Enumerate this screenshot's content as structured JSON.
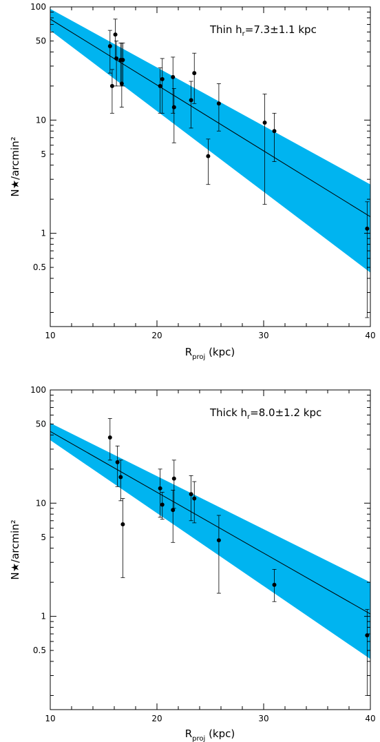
{
  "chart_data": [
    {
      "type": "scatter",
      "annotation": {
        "prefix": "Thin h",
        "sub": "r",
        "suffix": "=7.3±1.1 kpc"
      },
      "xlabel": {
        "main": "R",
        "sub": "proj",
        "suffix": " (kpc)"
      },
      "ylabel": "N★/arcmin²",
      "xlim": [
        10,
        40
      ],
      "ylim": [
        0.15,
        100
      ],
      "yscale": "log",
      "xticks": [
        10,
        20,
        30,
        40
      ],
      "yticks": [
        0.5,
        1,
        5,
        10,
        50,
        100
      ],
      "ytick_labels": [
        "0.5",
        "1",
        "5",
        "10",
        "50",
        "100"
      ],
      "band_color": "#00b4f0",
      "fit_line": {
        "x": [
          10,
          40
        ],
        "y": [
          78,
          1.4
        ]
      },
      "band": {
        "x": [
          10,
          40
        ],
        "upper": [
          96,
          2.7
        ],
        "lower": [
          62,
          0.45
        ]
      },
      "points": [
        {
          "x": 15.6,
          "y": 45,
          "ylo": 26,
          "yhi": 62
        },
        {
          "x": 15.8,
          "y": 20,
          "ylo": 11.5,
          "yhi": 28
        },
        {
          "x": 16.1,
          "y": 57,
          "ylo": 35,
          "yhi": 78
        },
        {
          "x": 16.2,
          "y": 35,
          "ylo": 20,
          "yhi": 50
        },
        {
          "x": 16.6,
          "y": 34,
          "ylo": 20,
          "yhi": 48
        },
        {
          "x": 16.7,
          "y": 21,
          "ylo": 13,
          "yhi": 48
        },
        {
          "x": 16.8,
          "y": 34,
          "ylo": 20,
          "yhi": 48
        },
        {
          "x": 20.3,
          "y": 20,
          "ylo": 11.5,
          "yhi": 29
        },
        {
          "x": 20.5,
          "y": 23,
          "ylo": 11.5,
          "yhi": 35
        },
        {
          "x": 21.5,
          "y": 24,
          "ylo": 11.5,
          "yhi": 36
        },
        {
          "x": 21.6,
          "y": 13,
          "ylo": 6.3,
          "yhi": 19
        },
        {
          "x": 23.2,
          "y": 15,
          "ylo": 8.5,
          "yhi": 22
        },
        {
          "x": 23.5,
          "y": 26,
          "ylo": 14,
          "yhi": 39
        },
        {
          "x": 25.8,
          "y": 14,
          "ylo": 8,
          "yhi": 21
        },
        {
          "x": 24.8,
          "y": 4.8,
          "ylo": 2.7,
          "yhi": 6.8
        },
        {
          "x": 30.1,
          "y": 9.5,
          "ylo": 1.8,
          "yhi": 17
        },
        {
          "x": 31.0,
          "y": 8,
          "ylo": 4.3,
          "yhi": 11.5
        },
        {
          "x": 39.7,
          "y": 1.1,
          "ylo": 0.18,
          "yhi": 1.9
        }
      ]
    },
    {
      "type": "scatter",
      "annotation": {
        "prefix": "Thick h",
        "sub": "r",
        "suffix": "=8.0±1.2 kpc"
      },
      "xlabel": {
        "main": "R",
        "sub": "proj",
        "suffix": " (kpc)"
      },
      "ylabel": "N★/arcmin²",
      "xlim": [
        10,
        40
      ],
      "ylim": [
        0.15,
        100
      ],
      "yscale": "log",
      "xticks": [
        10,
        20,
        30,
        40
      ],
      "yticks": [
        0.5,
        1,
        5,
        10,
        50,
        100
      ],
      "ytick_labels": [
        "0.5",
        "1",
        "5",
        "10",
        "50",
        "100"
      ],
      "band_color": "#00b4f0",
      "fit_line": {
        "x": [
          10,
          40
        ],
        "y": [
          43,
          1.05
        ]
      },
      "band": {
        "x": [
          10,
          40
        ],
        "upper": [
          51,
          2.0
        ],
        "lower": [
          36,
          0.42
        ]
      },
      "points": [
        {
          "x": 15.6,
          "y": 38,
          "ylo": 24,
          "yhi": 56
        },
        {
          "x": 16.3,
          "y": 23,
          "ylo": 14,
          "yhi": 32
        },
        {
          "x": 16.6,
          "y": 17,
          "ylo": 10.5,
          "yhi": 24
        },
        {
          "x": 16.8,
          "y": 6.5,
          "ylo": 2.2,
          "yhi": 11
        },
        {
          "x": 20.3,
          "y": 13.5,
          "ylo": 7.5,
          "yhi": 20
        },
        {
          "x": 20.5,
          "y": 9.7,
          "ylo": 7.2,
          "yhi": 12.5
        },
        {
          "x": 21.5,
          "y": 8.7,
          "ylo": 4.5,
          "yhi": 13
        },
        {
          "x": 21.6,
          "y": 16.5,
          "ylo": 9,
          "yhi": 24
        },
        {
          "x": 23.2,
          "y": 12,
          "ylo": 7,
          "yhi": 17.5
        },
        {
          "x": 23.5,
          "y": 11,
          "ylo": 6.7,
          "yhi": 15.5
        },
        {
          "x": 25.8,
          "y": 4.7,
          "ylo": 1.6,
          "yhi": 7.8
        },
        {
          "x": 31.0,
          "y": 1.9,
          "ylo": 1.35,
          "yhi": 2.6
        },
        {
          "x": 39.7,
          "y": 0.68,
          "ylo": 0.2,
          "yhi": 1.15
        }
      ]
    }
  ]
}
